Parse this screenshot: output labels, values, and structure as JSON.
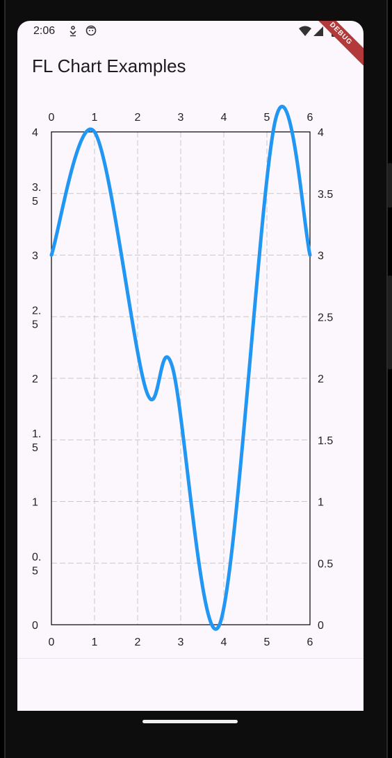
{
  "status_bar": {
    "time": "2:06",
    "icons": [
      "download-notification-icon",
      "face-notification-icon",
      "wifi-icon",
      "signal-icon",
      "battery-icon"
    ]
  },
  "debug_banner": "DEBUG",
  "app": {
    "title": "FL Chart Examples"
  },
  "chart_data": {
    "type": "line",
    "x": [
      0,
      1,
      2.2,
      2.8,
      3.9,
      5.2,
      6
    ],
    "series": [
      {
        "values": [
          3,
          4,
          1.9,
          2.1,
          0,
          4.1,
          3
        ],
        "color": "#2196f3",
        "curved": true
      }
    ],
    "xlim": [
      0,
      6
    ],
    "ylim": [
      0,
      4
    ],
    "x_ticks": [
      "0",
      "1",
      "2",
      "3",
      "4",
      "5",
      "6"
    ],
    "left_y_ticks": [
      "0",
      "0.\n5",
      "1",
      "1.\n5",
      "2",
      "2.\n5",
      "3",
      "3.\n5",
      "4"
    ],
    "right_y_ticks": [
      "0",
      "0.5",
      "1",
      "1.5",
      "2",
      "2.5",
      "3",
      "3.5",
      "4"
    ],
    "grid": true,
    "grid_style": "dashed",
    "x_tick_positions": [
      "top",
      "bottom"
    ],
    "y_tick_positions": [
      "left",
      "right"
    ]
  }
}
